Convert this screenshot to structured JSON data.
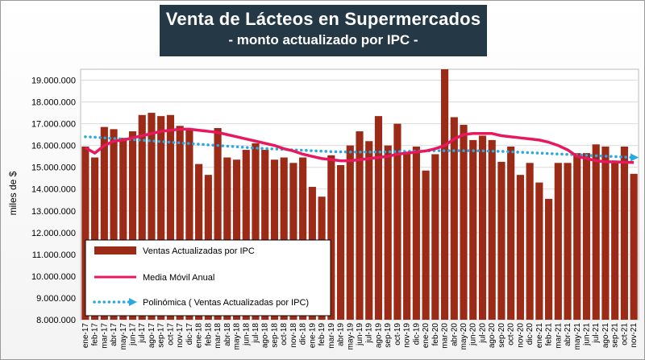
{
  "chart_data": {
    "type": "bar",
    "title": "Venta de Lácteos en Supermercados",
    "subtitle": "- monto actualizado por IPC -",
    "ylabel": "miles de $",
    "xlabel": "",
    "ylim": [
      8000000,
      19500000
    ],
    "yticks": [
      "8.000.000",
      "9.000.000",
      "10.000.000",
      "11.000.000",
      "12.000.000",
      "13.000.000",
      "14.000.000",
      "15.000.000",
      "16.000.000",
      "17.000.000",
      "18.000.000",
      "19.000.000"
    ],
    "categories": [
      "ene-17",
      "feb-17",
      "mar-17",
      "abr-17",
      "may-17",
      "jun-17",
      "jul-17",
      "ago-17",
      "sep-17",
      "oct-17",
      "nov-17",
      "dic-17",
      "ene-18",
      "feb-18",
      "mar-18",
      "abr-18",
      "may-18",
      "jun-18",
      "jul-18",
      "ago-18",
      "sep-18",
      "oct-18",
      "nov-18",
      "dic-18",
      "ene-19",
      "feb-19",
      "mar-19",
      "abr-19",
      "may-19",
      "jun-19",
      "jul-19",
      "ago-19",
      "sep-19",
      "oct-19",
      "nov-19",
      "dic-19",
      "ene-20",
      "feb-20",
      "mar-20",
      "abr-20",
      "may-20",
      "jun-20",
      "jul-20",
      "ago-20",
      "sep-20",
      "oct-20",
      "nov-20",
      "dic-20",
      "ene-21",
      "feb-21",
      "mar-21",
      "abr-21",
      "may-21",
      "jun-21",
      "jul-21",
      "ago-21",
      "sep-21",
      "oct-21",
      "nov-21"
    ],
    "series": [
      {
        "name": "Ventas Actualizadas por IPC",
        "kind": "bar",
        "color": "#9b2a17",
        "values": [
          15950000,
          15450000,
          16850000,
          16750000,
          16350000,
          16650000,
          17400000,
          17500000,
          17350000,
          17400000,
          16900000,
          16750000,
          15150000,
          14650000,
          16800000,
          15450000,
          15350000,
          15800000,
          16100000,
          15800000,
          15350000,
          15450000,
          15200000,
          15450000,
          14100000,
          13650000,
          15550000,
          15100000,
          16000000,
          16650000,
          16200000,
          17350000,
          16000000,
          17000000,
          15650000,
          15950000,
          14850000,
          15600000,
          19550000,
          17300000,
          16950000,
          16250000,
          16450000,
          16250000,
          15250000,
          15950000,
          14650000,
          15200000,
          14300000,
          13550000,
          15200000,
          15200000,
          15650000,
          15650000,
          16050000,
          15950000,
          15300000,
          15950000,
          14700000
        ]
      },
      {
        "name": "Media Móvil Anual",
        "kind": "line",
        "color": "#e8185f",
        "values": [
          15900000,
          15650000,
          16000000,
          16200000,
          16250000,
          16350000,
          16450000,
          16550000,
          16650000,
          16700000,
          16750000,
          16750000,
          16700000,
          16650000,
          16600000,
          16500000,
          16400000,
          16300000,
          16200000,
          16100000,
          16000000,
          15850000,
          15750000,
          15600000,
          15500000,
          15400000,
          15350000,
          15300000,
          15300000,
          15350000,
          15400000,
          15450000,
          15500000,
          15600000,
          15650000,
          15700000,
          15750000,
          15850000,
          16000000,
          16300000,
          16500000,
          16550000,
          16550000,
          16550000,
          16450000,
          16400000,
          16350000,
          16300000,
          16250000,
          16150000,
          16000000,
          15800000,
          15500000,
          15400000,
          15300000,
          15250000,
          15250000,
          15230000,
          15220000
        ]
      },
      {
        "name": "Polinómica ( Ventas Actualizadas por IPC)",
        "kind": "trend",
        "color": "#2aa8e0",
        "values": [
          16400000,
          16380000,
          16350000,
          16320000,
          16300000,
          16270000,
          16240000,
          16210000,
          16180000,
          16150000,
          16120000,
          16090000,
          16060000,
          16030000,
          16000000,
          15970000,
          15940000,
          15910000,
          15880000,
          15860000,
          15840000,
          15820000,
          15800000,
          15780000,
          15760000,
          15740000,
          15720000,
          15710000,
          15700000,
          15700000,
          15700000,
          15700000,
          15710000,
          15720000,
          15730000,
          15740000,
          15750000,
          15760000,
          15760000,
          15760000,
          15760000,
          15760000,
          15750000,
          15740000,
          15730000,
          15710000,
          15690000,
          15670000,
          15650000,
          15630000,
          15610000,
          15590000,
          15570000,
          15550000,
          15530000,
          15510000,
          15490000,
          15470000,
          15450000
        ]
      }
    ],
    "legend": {
      "position": "bottom-left",
      "items": [
        {
          "label": "Ventas Actualizadas por IPC",
          "color": "#9b2a17",
          "symbol": "bar"
        },
        {
          "label": "Media Móvil Anual",
          "color": "#e8185f",
          "symbol": "line"
        },
        {
          "label": "Polinómica ( Ventas Actualizadas por IPC)",
          "color": "#2aa8e0",
          "symbol": "dotted-arrow"
        }
      ]
    }
  }
}
